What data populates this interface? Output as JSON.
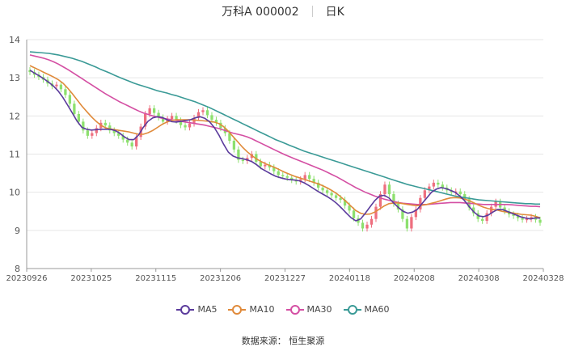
{
  "header": {
    "title": "万科A 000002",
    "period": "日K"
  },
  "source": "数据来源： 恒生聚源",
  "colors": {
    "up": "#ee6f7f",
    "down": "#8de06e",
    "grid": "#e6e6e6",
    "axis": "#999999",
    "MA5": "#5b3b9c",
    "MA10": "#e08a3a",
    "MA30": "#d44fa3",
    "MA60": "#3a9a96"
  },
  "chart_data": {
    "type": "candlestick",
    "title": "万科A 000002",
    "ylim": [
      8,
      14
    ],
    "yticks": [
      8,
      9,
      10,
      11,
      12,
      13,
      14
    ],
    "xticks": [
      "20230926",
      "20231025",
      "20231115",
      "20231206",
      "20231227",
      "20240118",
      "20240208",
      "20240308",
      "20240328"
    ],
    "legend": [
      "MA5",
      "MA10",
      "MA30",
      "MA60"
    ],
    "legend_position": "bottom",
    "grid": true,
    "close": [
      13.15,
      13.08,
      13.02,
      12.95,
      12.85,
      12.78,
      12.82,
      12.7,
      12.55,
      12.32,
      12.05,
      11.85,
      11.62,
      11.48,
      11.55,
      11.68,
      11.82,
      11.75,
      11.62,
      11.55,
      11.48,
      11.38,
      11.3,
      11.2,
      11.45,
      11.72,
      12.05,
      12.2,
      12.08,
      11.96,
      11.85,
      11.92,
      12.0,
      11.88,
      11.76,
      11.7,
      11.8,
      11.95,
      12.1,
      12.15,
      12.02,
      11.9,
      11.82,
      11.68,
      11.55,
      11.35,
      11.12,
      10.85,
      10.82,
      10.9,
      11.0,
      10.8,
      10.68,
      10.72,
      10.65,
      10.55,
      10.45,
      10.42,
      10.38,
      10.32,
      10.28,
      10.34,
      10.45,
      10.35,
      10.25,
      10.12,
      10.05,
      9.98,
      9.92,
      9.85,
      9.8,
      9.65,
      9.52,
      9.32,
      9.2,
      9.05,
      9.15,
      9.3,
      9.62,
      9.95,
      10.2,
      9.95,
      9.7,
      9.55,
      9.3,
      9.05,
      9.35,
      9.55,
      9.85,
      10.05,
      10.15,
      10.25,
      10.2,
      10.12,
      10.05,
      10.0,
      10.02,
      9.95,
      9.82,
      9.6,
      9.45,
      9.3,
      9.25,
      9.45,
      9.62,
      9.75,
      9.6,
      9.5,
      9.42,
      9.38,
      9.32,
      9.28,
      9.3,
      9.35,
      9.28,
      9.2
    ],
    "MA5": [
      13.2,
      13.12,
      13.05,
      12.97,
      12.88,
      12.78,
      12.65,
      12.48,
      12.28,
      12.07,
      11.86,
      11.7,
      11.65,
      11.63,
      11.64,
      11.65,
      11.65,
      11.65,
      11.62,
      11.55,
      11.45,
      11.38,
      11.38,
      11.5,
      11.7,
      11.86,
      11.95,
      11.98,
      11.96,
      11.9,
      11.85,
      11.84,
      11.86,
      11.88,
      11.9,
      11.95,
      11.98,
      11.94,
      11.85,
      11.7,
      11.5,
      11.26,
      11.05,
      10.95,
      10.9,
      10.88,
      10.85,
      10.8,
      10.72,
      10.62,
      10.55,
      10.48,
      10.42,
      10.38,
      10.35,
      10.33,
      10.32,
      10.3,
      10.25,
      10.18,
      10.1,
      10.02,
      9.95,
      9.88,
      9.8,
      9.7,
      9.58,
      9.45,
      9.33,
      9.25,
      9.3,
      9.45,
      9.62,
      9.78,
      9.9,
      9.92,
      9.85,
      9.72,
      9.6,
      9.5,
      9.45,
      9.48,
      9.55,
      9.7,
      9.85,
      10.0,
      10.08,
      10.12,
      10.1,
      10.05,
      10.0,
      9.9,
      9.78,
      9.62,
      9.48,
      9.38,
      9.36,
      9.4,
      9.48,
      9.55,
      9.55,
      9.5,
      9.45,
      9.4,
      9.35,
      9.32,
      9.3,
      9.33,
      9.32
    ],
    "MA10": [
      13.32,
      13.26,
      13.2,
      13.14,
      13.08,
      13.02,
      12.95,
      12.86,
      12.73,
      12.58,
      12.42,
      12.26,
      12.12,
      11.98,
      11.86,
      11.76,
      11.69,
      11.66,
      11.64,
      11.62,
      11.6,
      11.58,
      11.55,
      11.52,
      11.52,
      11.56,
      11.62,
      11.7,
      11.78,
      11.84,
      11.88,
      11.9,
      11.9,
      11.9,
      11.9,
      11.89,
      11.88,
      11.87,
      11.86,
      11.84,
      11.8,
      11.72,
      11.6,
      11.46,
      11.32,
      11.18,
      11.06,
      10.96,
      10.87,
      10.8,
      10.74,
      10.69,
      10.64,
      10.58,
      10.52,
      10.47,
      10.42,
      10.38,
      10.34,
      10.3,
      10.26,
      10.22,
      10.17,
      10.11,
      10.04,
      9.96,
      9.86,
      9.75,
      9.63,
      9.52,
      9.45,
      9.42,
      9.43,
      9.48,
      9.56,
      9.64,
      9.7,
      9.72,
      9.72,
      9.7,
      9.68,
      9.66,
      9.65,
      9.66,
      9.68,
      9.71,
      9.74,
      9.78,
      9.82,
      9.85,
      9.86,
      9.85,
      9.82,
      9.78,
      9.72,
      9.66,
      9.61,
      9.57,
      9.55,
      9.53,
      9.5,
      9.48,
      9.46,
      9.44,
      9.42,
      9.41,
      9.4,
      9.37,
      9.33
    ],
    "MA30": [
      13.6,
      13.57,
      13.54,
      13.51,
      13.47,
      13.42,
      13.36,
      13.29,
      13.22,
      13.14,
      13.06,
      12.98,
      12.9,
      12.82,
      12.74,
      12.66,
      12.58,
      12.51,
      12.44,
      12.37,
      12.31,
      12.25,
      12.19,
      12.13,
      12.08,
      12.04,
      12.0,
      11.97,
      11.94,
      11.92,
      11.9,
      11.88,
      11.86,
      11.84,
      11.82,
      11.8,
      11.78,
      11.76,
      11.73,
      11.7,
      11.67,
      11.63,
      11.59,
      11.55,
      11.52,
      11.49,
      11.45,
      11.4,
      11.34,
      11.28,
      11.22,
      11.16,
      11.1,
      11.04,
      10.98,
      10.93,
      10.88,
      10.83,
      10.78,
      10.73,
      10.68,
      10.63,
      10.58,
      10.52,
      10.46,
      10.4,
      10.33,
      10.26,
      10.19,
      10.12,
      10.06,
      10.0,
      9.95,
      9.9,
      9.86,
      9.82,
      9.79,
      9.76,
      9.73,
      9.71,
      9.7,
      9.69,
      9.68,
      9.68,
      9.68,
      9.69,
      9.7,
      9.71,
      9.72,
      9.73,
      9.73,
      9.73,
      9.72,
      9.71,
      9.7,
      9.69,
      9.68,
      9.68,
      9.68,
      9.68,
      9.68,
      9.68,
      9.67,
      9.66,
      9.65,
      9.64,
      9.63,
      9.63,
      9.62
    ],
    "MA60": [
      13.68,
      13.67,
      13.66,
      13.65,
      13.64,
      13.62,
      13.6,
      13.57,
      13.54,
      13.51,
      13.47,
      13.43,
      13.38,
      13.33,
      13.28,
      13.22,
      13.17,
      13.12,
      13.06,
      13.01,
      12.96,
      12.91,
      12.86,
      12.82,
      12.78,
      12.74,
      12.7,
      12.66,
      12.63,
      12.6,
      12.56,
      12.53,
      12.49,
      12.45,
      12.41,
      12.37,
      12.32,
      12.27,
      12.22,
      12.16,
      12.1,
      12.04,
      11.98,
      11.92,
      11.86,
      11.8,
      11.74,
      11.68,
      11.62,
      11.56,
      11.5,
      11.44,
      11.38,
      11.33,
      11.28,
      11.23,
      11.18,
      11.13,
      11.08,
      11.04,
      11.0,
      10.96,
      10.92,
      10.88,
      10.84,
      10.8,
      10.76,
      10.72,
      10.68,
      10.64,
      10.6,
      10.56,
      10.52,
      10.48,
      10.44,
      10.4,
      10.36,
      10.32,
      10.28,
      10.24,
      10.2,
      10.17,
      10.14,
      10.11,
      10.08,
      10.05,
      10.02,
      9.99,
      9.96,
      9.93,
      9.9,
      9.88,
      9.86,
      9.84,
      9.82,
      9.8,
      9.79,
      9.78,
      9.77,
      9.76,
      9.75,
      9.74,
      9.73,
      9.72,
      9.71,
      9.7,
      9.7,
      9.69,
      9.69
    ]
  }
}
